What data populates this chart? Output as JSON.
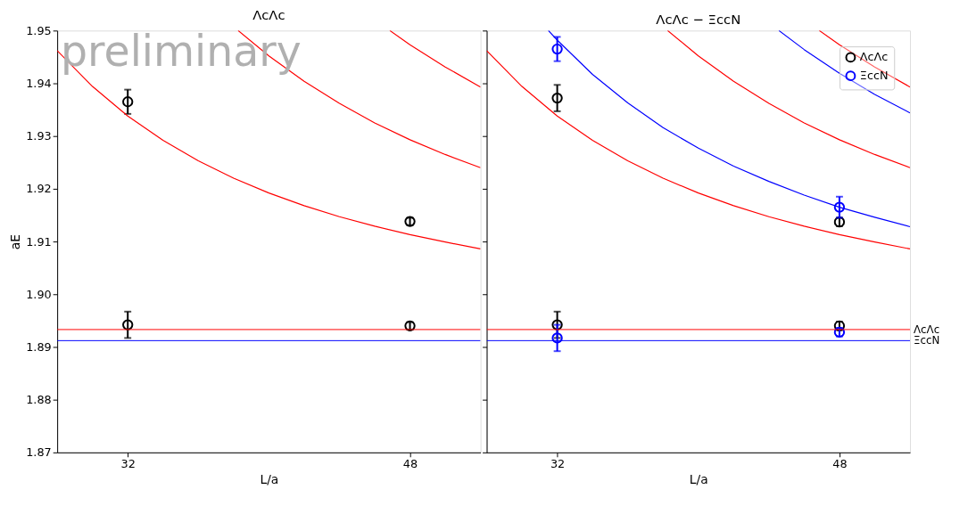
{
  "chart_data": [
    {
      "type": "scatter",
      "title": "ΛcΛc",
      "xlabel": "L/a",
      "ylabel": "aE",
      "xlim": [
        28,
        52
      ],
      "ylim": [
        1.87,
        1.95
      ],
      "xticks": [
        32,
        48
      ],
      "yticks": [
        1.87,
        1.88,
        1.89,
        {
          "value": 1.9,
          "label": "1.90"
        },
        1.91,
        1.92,
        1.93,
        1.94,
        1.95
      ],
      "annotations": [
        "preliminary"
      ],
      "ref_lines": [
        {
          "axis": "y",
          "value": 1.8933,
          "color": "#ff0000"
        },
        {
          "axis": "y",
          "value": 1.8912,
          "color": "#0000ff"
        }
      ],
      "series": [
        {
          "marker": "circle",
          "color": "#000000",
          "x": [
            32,
            48,
            32,
            48
          ],
          "values": [
            1.9365,
            1.9138,
            1.8942,
            1.894
          ],
          "errors": [
            0.0023,
            0.0007,
            0.0025,
            0.0007
          ]
        },
        {
          "type": "line",
          "color": "#ff0000",
          "x": [
            28,
            30,
            32,
            34,
            36,
            38,
            40,
            42,
            44,
            46,
            48,
            50,
            52
          ],
          "values": [
            1.9462,
            1.9394,
            1.9338,
            1.9292,
            1.9253,
            1.922,
            1.9192,
            1.9168,
            1.9147,
            1.9129,
            1.9113,
            1.9099,
            1.9086
          ]
        },
        {
          "type": "line",
          "color": "#ff0000",
          "x": [
            38.26,
            40,
            42,
            44,
            46,
            48,
            50,
            52
          ],
          "values": [
            1.95,
            1.9452,
            1.9404,
            1.9362,
            1.9325,
            1.9293,
            1.9265,
            1.924
          ]
        },
        {
          "type": "line",
          "color": "#ff0000",
          "x": [
            46.86,
            48,
            50,
            52
          ],
          "values": [
            1.95,
            1.9473,
            1.9431,
            1.9393
          ]
        }
      ]
    },
    {
      "type": "scatter",
      "title": "ΛcΛc − ΞccN",
      "xlabel": "L/a",
      "xlim": [
        28,
        52
      ],
      "ylim": [
        1.87,
        1.95
      ],
      "xticks": [
        32,
        48
      ],
      "yticks": [
        1.87,
        1.88,
        1.89,
        1.9,
        1.91,
        1.92,
        1.93,
        1.94,
        1.95
      ],
      "tick_labels": "x",
      "legend": "top right",
      "ref_lines": [
        {
          "axis": "y",
          "value": 1.8933,
          "color": "#ff0000",
          "label": "ΛcΛc"
        },
        {
          "axis": "y",
          "value": 1.8912,
          "color": "#0000ff",
          "label": "ΞccN"
        }
      ],
      "series": [
        {
          "marker": "circle",
          "name": "ΛcΛc",
          "color": "#000000",
          "x": [
            32,
            48,
            32,
            48
          ],
          "values": [
            1.9372,
            1.9137,
            1.8942,
            1.894
          ],
          "errors": [
            0.0025,
            0.0008,
            0.0025,
            0.0008
          ]
        },
        {
          "marker": "circle",
          "name": "ΞccN",
          "color": "#0000ff",
          "x": [
            32,
            48,
            32,
            48
          ],
          "values": [
            1.9465,
            1.9165,
            1.8917,
            1.8928
          ],
          "errors": [
            0.0023,
            0.002,
            0.0025,
            0.0008
          ]
        },
        {
          "type": "line",
          "color": "#ff0000",
          "x": [
            28,
            30,
            32,
            34,
            36,
            38,
            40,
            42,
            44,
            46,
            48,
            50,
            52
          ],
          "values": [
            1.9462,
            1.9394,
            1.9338,
            1.9292,
            1.9253,
            1.922,
            1.9192,
            1.9168,
            1.9147,
            1.9129,
            1.9113,
            1.9099,
            1.9086
          ]
        },
        {
          "type": "line",
          "color": "#ff0000",
          "x": [
            38.26,
            40,
            42,
            44,
            46,
            48,
            50,
            52
          ],
          "values": [
            1.95,
            1.9452,
            1.9404,
            1.9362,
            1.9325,
            1.9293,
            1.9265,
            1.924
          ]
        },
        {
          "type": "line",
          "color": "#ff0000",
          "x": [
            46.86,
            48,
            50,
            52
          ],
          "values": [
            1.95,
            1.9473,
            1.9431,
            1.9393
          ]
        },
        {
          "type": "line",
          "color": "#0000ff",
          "x": [
            31.5,
            32,
            34,
            36,
            38,
            40,
            42,
            44,
            46,
            48,
            50,
            52
          ],
          "values": [
            1.95,
            1.9482,
            1.9417,
            1.9363,
            1.9316,
            1.9277,
            1.9243,
            1.9214,
            1.9188,
            1.9165,
            1.9146,
            1.9128
          ]
        },
        {
          "type": "line",
          "color": "#0000ff",
          "x": [
            44.57,
            46,
            48,
            50,
            52
          ],
          "values": [
            1.95,
            1.9464,
            1.9419,
            1.9379,
            1.9344
          ]
        }
      ]
    }
  ]
}
